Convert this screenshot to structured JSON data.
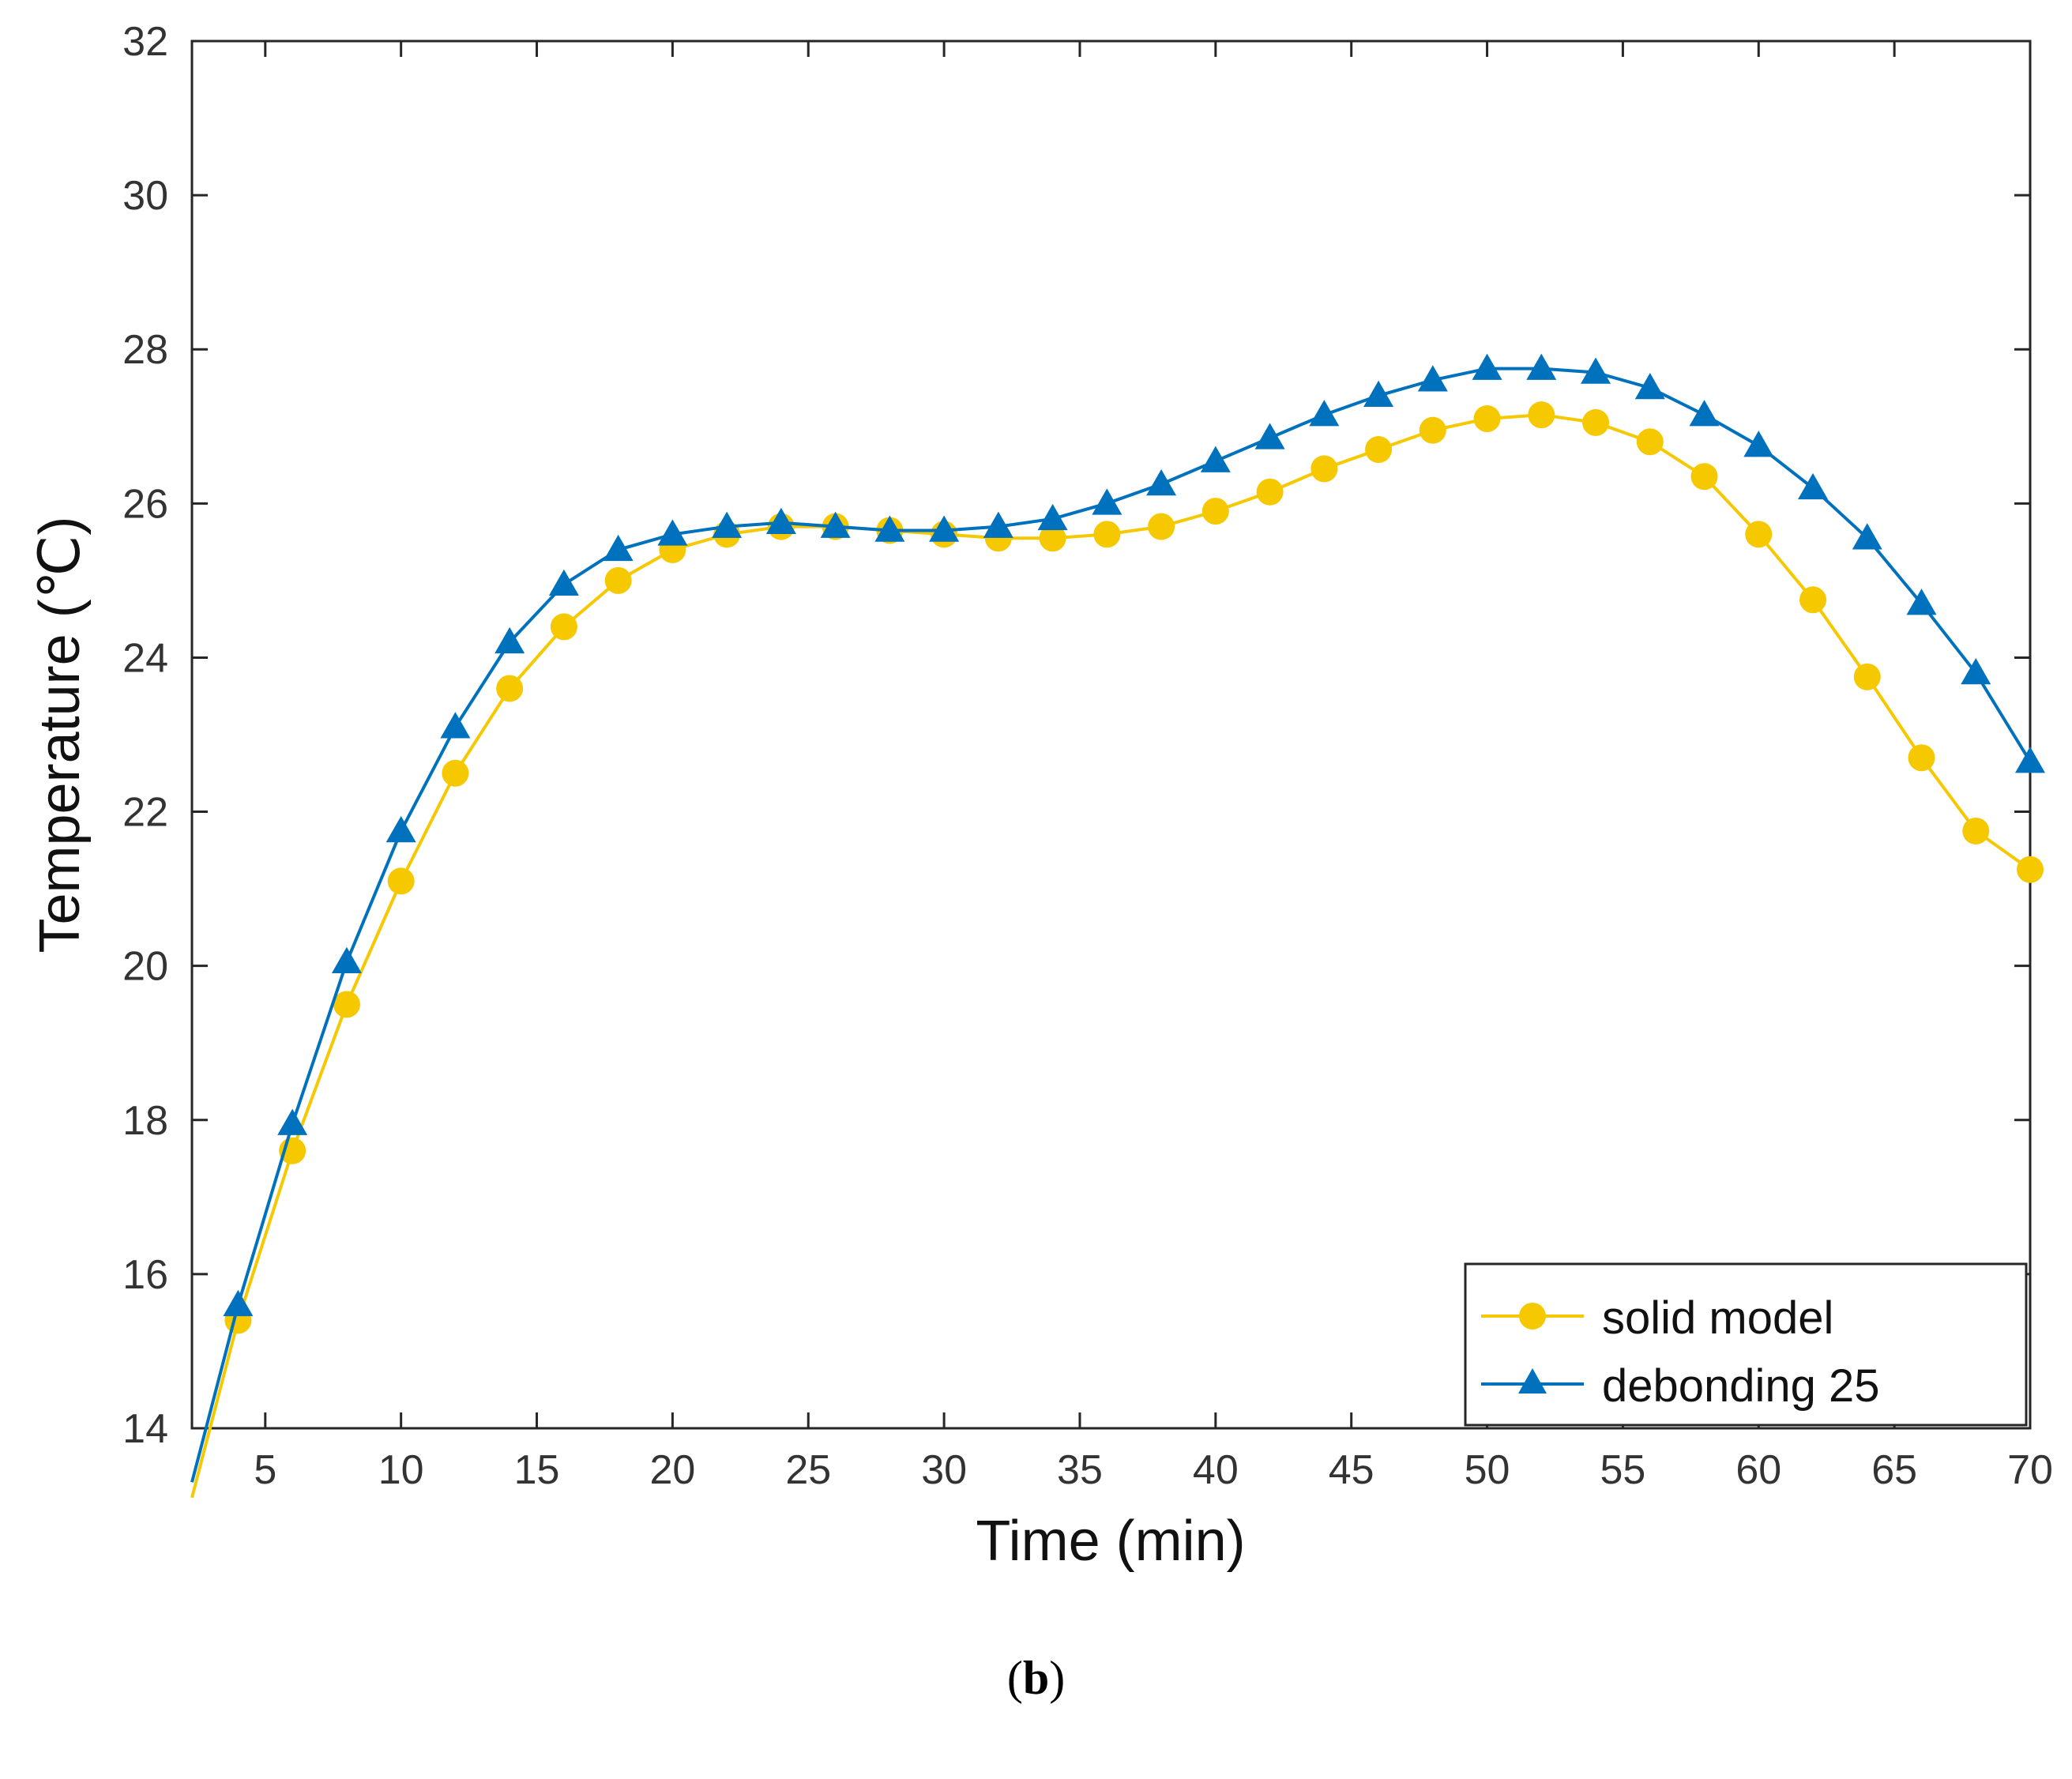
{
  "chart_data": {
    "type": "line",
    "xlabel": "Time (min)",
    "ylabel": "Temperature (℃)",
    "xlim": [
      2.3,
      70
    ],
    "ylim": [
      14,
      32
    ],
    "xticks": [
      5,
      10,
      15,
      20,
      25,
      30,
      35,
      40,
      45,
      50,
      55,
      60,
      65,
      70
    ],
    "yticks": [
      14,
      16,
      18,
      20,
      22,
      24,
      26,
      28,
      30,
      32
    ],
    "legend_position": "bottom-right",
    "series": [
      {
        "name": "solid model",
        "color": "#F5C800",
        "marker": "circle",
        "x": [
          2.3,
          4,
          6,
          8,
          10,
          12,
          14,
          16,
          18,
          20,
          22,
          24,
          26,
          28,
          30,
          32,
          34,
          36,
          38,
          40,
          42,
          44,
          46,
          48,
          50,
          52,
          54,
          56,
          58,
          60,
          62,
          64,
          66,
          68,
          70
        ],
        "y": [
          13.1,
          15.4,
          17.6,
          19.5,
          21.1,
          22.5,
          23.6,
          24.4,
          25.0,
          25.4,
          25.6,
          25.7,
          25.7,
          25.65,
          25.6,
          25.55,
          25.55,
          25.6,
          25.7,
          25.9,
          26.15,
          26.45,
          26.7,
          26.95,
          27.1,
          27.15,
          27.05,
          26.8,
          26.35,
          25.6,
          24.75,
          23.75,
          22.7,
          21.75,
          21.25
        ]
      },
      {
        "name": "debonding 25",
        "color": "#0072BD",
        "marker": "triangle",
        "x": [
          2.3,
          4,
          6,
          8,
          10,
          12,
          14,
          16,
          18,
          20,
          22,
          24,
          26,
          28,
          30,
          32,
          34,
          36,
          38,
          40,
          42,
          44,
          46,
          48,
          50,
          52,
          54,
          56,
          58,
          60,
          62,
          64,
          66,
          68,
          70
        ],
        "y": [
          13.3,
          15.6,
          17.95,
          20.05,
          21.75,
          23.1,
          24.2,
          24.95,
          25.4,
          25.6,
          25.7,
          25.75,
          25.7,
          25.65,
          25.65,
          25.7,
          25.8,
          26.0,
          26.25,
          26.55,
          26.85,
          27.15,
          27.4,
          27.6,
          27.75,
          27.75,
          27.7,
          27.5,
          27.15,
          26.75,
          26.2,
          25.55,
          24.7,
          23.8,
          22.65
        ]
      }
    ]
  },
  "caption": {
    "open": "(",
    "letter": "b",
    "close": ")"
  }
}
